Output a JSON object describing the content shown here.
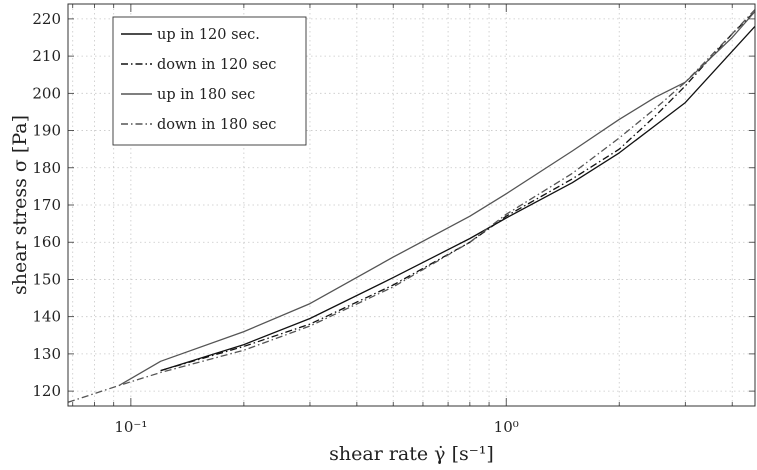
{
  "chart_data": {
    "type": "line",
    "xscale": "log",
    "xlabel": "shear rate γ̇ [s⁻¹]",
    "ylabel": "shear stress σ [Pa]",
    "xlim": [
      0.068,
      4.6
    ],
    "ylim": [
      116,
      224
    ],
    "grid": true,
    "legend_position": "top-left",
    "x_ticks": [
      {
        "value": 0.1,
        "label": "10⁻¹"
      },
      {
        "value": 1,
        "label": "10⁰"
      }
    ],
    "y_ticks": [
      120,
      130,
      140,
      150,
      160,
      170,
      180,
      190,
      200,
      210,
      220
    ],
    "series": [
      {
        "name": "up in 120 sec.",
        "color": "#111111",
        "dash": "solid",
        "x": [
          0.12,
          0.2,
          0.3,
          0.5,
          0.8,
          1.0,
          1.5,
          2.0,
          3.0,
          4.6
        ],
        "y": [
          125.5,
          132.5,
          139.5,
          150.5,
          161,
          166.5,
          176,
          184,
          197.5,
          218
        ]
      },
      {
        "name": "down in 120 sec",
        "color": "#111111",
        "dash": "dashdot",
        "x": [
          0.12,
          0.2,
          0.3,
          0.5,
          0.8,
          1.0,
          1.5,
          2.0,
          2.5,
          3.0,
          4.0,
          4.6
        ],
        "y": [
          125.5,
          132,
          138,
          148.5,
          160,
          167,
          177,
          185,
          194,
          202,
          216,
          222
        ]
      },
      {
        "name": "up in 180 sec",
        "color": "#555555",
        "dash": "solid",
        "x": [
          0.093,
          0.12,
          0.2,
          0.3,
          0.5,
          0.8,
          1.0,
          1.5,
          2.0,
          2.5,
          3.0,
          4.0,
          4.6
        ],
        "y": [
          121.5,
          128,
          136,
          143.5,
          156,
          167,
          173,
          184.5,
          193,
          199,
          203,
          215,
          222
        ]
      },
      {
        "name": "down in 180 sec",
        "color": "#555555",
        "dash": "dashdot",
        "x": [
          0.068,
          0.093,
          0.12,
          0.2,
          0.3,
          0.5,
          0.8,
          1.0,
          1.5,
          2.0,
          2.5,
          3.0,
          4.0,
          4.6
        ],
        "y": [
          117,
          121.5,
          125,
          131,
          137.5,
          148,
          160,
          167.5,
          178.5,
          188,
          196,
          203,
          216,
          222.5
        ]
      }
    ]
  }
}
